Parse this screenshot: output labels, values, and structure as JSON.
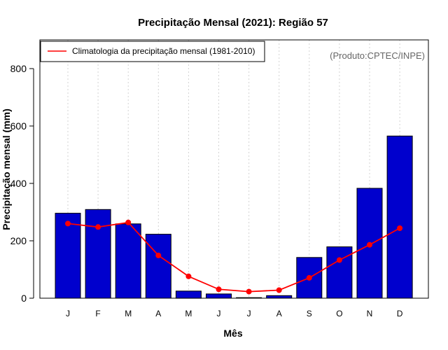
{
  "chart_data": {
    "type": "bar",
    "title": "Precipitação Mensal (2021): Região 57",
    "xlabel": "Mês",
    "ylabel": "Precipitação mensal (mm)",
    "ylim": [
      0,
      900
    ],
    "yticks": [
      0,
      200,
      400,
      600,
      800
    ],
    "categories": [
      "J",
      "F",
      "M",
      "A",
      "M",
      "J",
      "J",
      "A",
      "S",
      "O",
      "N",
      "D"
    ],
    "series": [
      {
        "name": "Precipitação mensal (2021)",
        "type": "bar",
        "color": "#0000CD",
        "values": [
          296,
          309,
          259,
          223,
          25,
          15,
          2,
          9,
          142,
          179,
          383,
          565
        ]
      },
      {
        "name": "Climatologia da precipitação mensal (1981-2010)",
        "type": "line",
        "color": "#FF0000",
        "values": [
          260,
          248,
          264,
          149,
          76,
          31,
          23,
          28,
          71,
          133,
          186,
          244
        ]
      }
    ],
    "legend": {
      "position": "top-left",
      "entries": [
        "Climatologia da precipitação mensal (1981-2010)"
      ]
    },
    "annotation": "(Produto:CPTEC/INPE)",
    "grid": "vertical-dotted"
  }
}
